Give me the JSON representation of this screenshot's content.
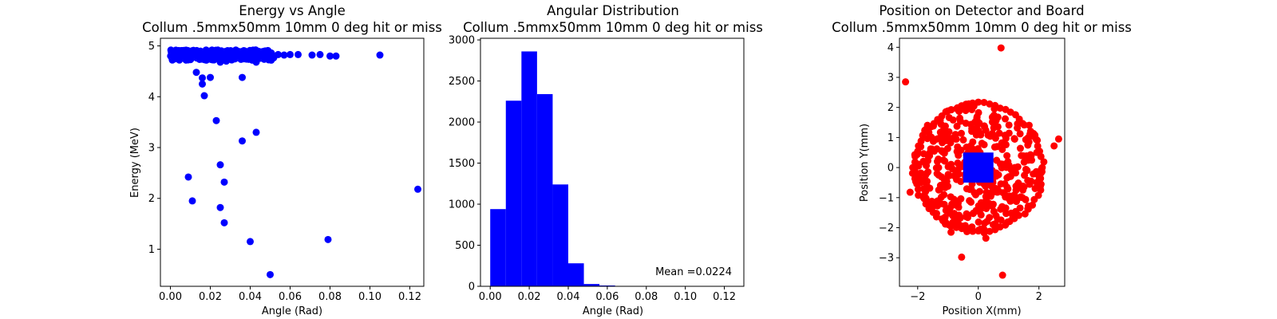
{
  "colors": {
    "scatter_energy": "#0000ff",
    "histogram": "#0000ff",
    "detector_hits": "#ff0000",
    "board": "#0000ff"
  },
  "chart_data": [
    {
      "type": "scatter",
      "title": "Energy vs Angle",
      "subtitle": "Collum .5mmx50mm 10mm 0 deg hit or miss",
      "xlabel": "Angle (Rad)",
      "ylabel": "Energy (MeV)",
      "xlim": [
        -0.005,
        0.127
      ],
      "ylim": [
        0.27,
        5.15
      ],
      "xticks": [
        "0.00",
        "0.02",
        "0.04",
        "0.06",
        "0.08",
        "0.10",
        "0.12"
      ],
      "yticks": [
        "1",
        "2",
        "3",
        "4",
        "5"
      ],
      "grid": false,
      "points": [
        [
          0.009,
          2.42
        ],
        [
          0.011,
          1.95
        ],
        [
          0.013,
          4.48
        ],
        [
          0.016,
          4.37
        ],
        [
          0.016,
          4.25
        ],
        [
          0.017,
          4.02
        ],
        [
          0.02,
          4.38
        ],
        [
          0.023,
          3.53
        ],
        [
          0.025,
          1.82
        ],
        [
          0.025,
          2.66
        ],
        [
          0.027,
          2.32
        ],
        [
          0.027,
          1.52
        ],
        [
          0.036,
          4.38
        ],
        [
          0.036,
          3.13
        ],
        [
          0.04,
          1.15
        ],
        [
          0.043,
          3.3
        ],
        [
          0.05,
          0.5
        ],
        [
          0.079,
          1.19
        ],
        [
          0.124,
          2.18
        ],
        [
          0.105,
          4.82
        ],
        [
          0.083,
          4.8
        ],
        [
          0.08,
          4.8
        ],
        [
          0.075,
          4.83
        ],
        [
          0.071,
          4.82
        ],
        [
          0.064,
          4.83
        ],
        [
          0.06,
          4.83
        ],
        [
          0.057,
          4.82
        ],
        [
          0.054,
          4.83
        ],
        [
          0.051,
          4.83
        ],
        [
          0.025,
          4.68
        ],
        [
          0.041,
          4.72
        ],
        [
          0.043,
          4.68
        ],
        [
          0.028,
          4.7
        ],
        [
          0.018,
          4.72
        ]
      ],
      "dense_band": {
        "x_range": [
          0.0,
          0.052
        ],
        "y_range": [
          4.72,
          4.92
        ]
      }
    },
    {
      "type": "bar",
      "title": "Angular Distribution",
      "subtitle": "Collum .5mmx50mm 10mm 0 deg hit or miss",
      "xlabel": "Angle (Rad)",
      "ylabel": "",
      "xlim": [
        -0.005,
        0.13
      ],
      "ylim": [
        0,
        3020
      ],
      "xticks": [
        "0.00",
        "0.02",
        "0.04",
        "0.06",
        "0.08",
        "0.10",
        "0.12"
      ],
      "yticks": [
        "0",
        "500",
        "1000",
        "1500",
        "2000",
        "2500",
        "3000"
      ],
      "grid": false,
      "bin_edges": [
        0.0,
        0.008,
        0.016,
        0.024,
        0.032,
        0.04,
        0.048,
        0.056,
        0.064,
        0.072,
        0.08,
        0.088,
        0.096,
        0.104,
        0.112,
        0.12,
        0.128
      ],
      "values": [
        940,
        2260,
        2860,
        2340,
        1240,
        280,
        28,
        10,
        2,
        2,
        1,
        1,
        0,
        1,
        0,
        1
      ],
      "annotation": "Mean =0.0224"
    },
    {
      "type": "scatter",
      "title": "Position on Detector and Board",
      "subtitle": "Collum .5mmx50mm 10mm 0 deg hit or miss",
      "xlabel": "Position X(mm)",
      "ylabel": "Position Y(mm)",
      "xlim": [
        -2.6,
        2.85
      ],
      "ylim": [
        -3.95,
        4.3
      ],
      "xticks": [
        "−2",
        "0",
        "2"
      ],
      "yticks": [
        "−3",
        "−2",
        "−1",
        "0",
        "1",
        "2",
        "3",
        "4"
      ],
      "grid": false,
      "hit_disc": {
        "center": [
          0,
          0
        ],
        "radius": 2.15
      },
      "board_square": {
        "x": [
          -0.5,
          0.5
        ],
        "y": [
          -0.5,
          0.5
        ]
      },
      "outliers": [
        [
          -2.4,
          2.85
        ],
        [
          0.75,
          3.98
        ],
        [
          2.65,
          0.95
        ],
        [
          2.5,
          0.72
        ],
        [
          -2.25,
          -0.82
        ],
        [
          -0.9,
          -2.15
        ],
        [
          0.25,
          -2.35
        ],
        [
          -0.55,
          -2.98
        ],
        [
          0.8,
          -3.58
        ]
      ]
    }
  ]
}
